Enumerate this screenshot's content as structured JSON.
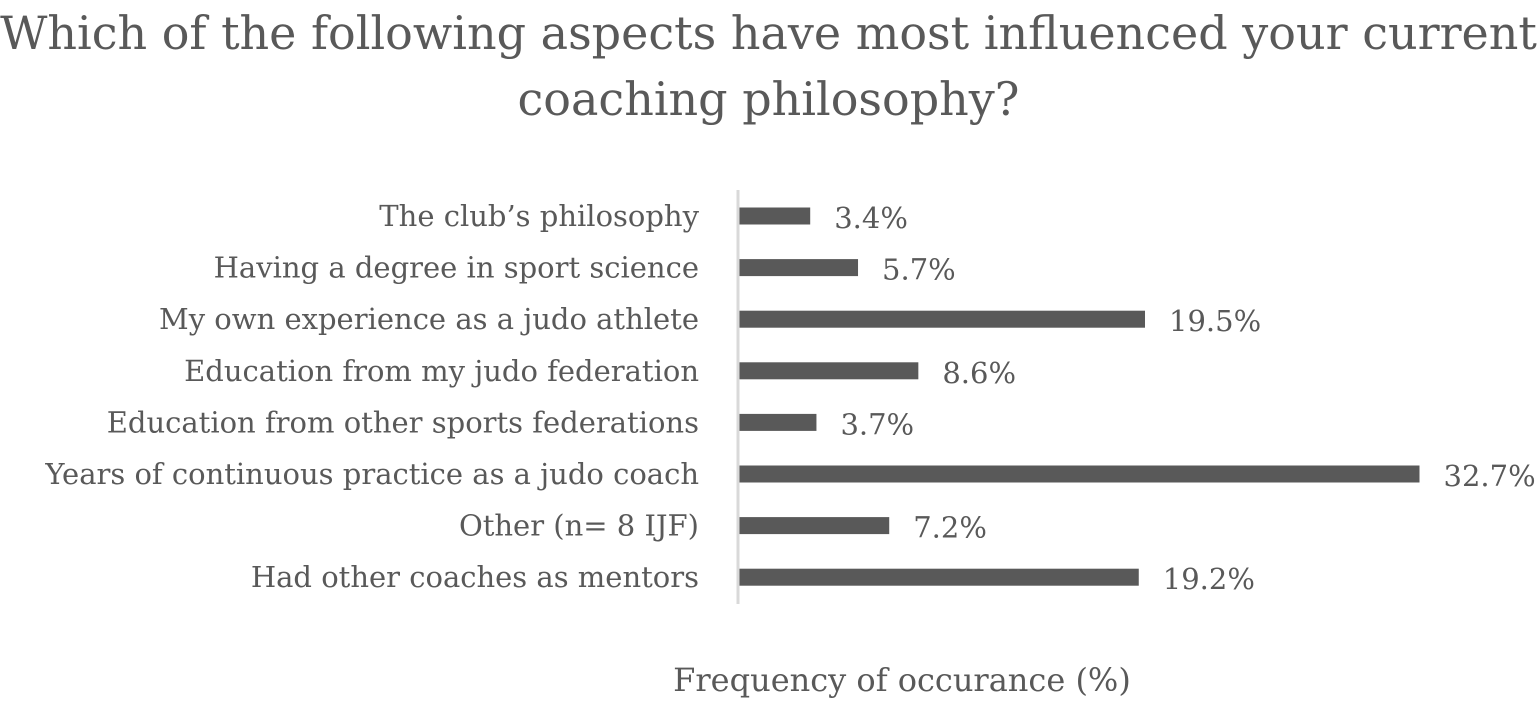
{
  "chart_data": {
    "type": "bar",
    "orientation": "horizontal",
    "title": "Which of the following aspects have most influenced your current coaching philosophy?",
    "xlabel": "Frequency of occurance (%)",
    "ylabel": "",
    "categories": [
      "The club’s philosophy",
      "Having a degree in sport science",
      "My own experience as a judo athlete",
      "Education from my judo federation",
      "Education from other sports federations",
      "Years of continuous practice as a judo coach",
      "Other (n= 8 IJF)",
      "Had other coaches as mentors"
    ],
    "values": [
      3.4,
      5.7,
      19.5,
      8.6,
      3.7,
      32.7,
      7.2,
      19.2
    ],
    "value_labels": [
      "3.4%",
      "5.7%",
      "19.5%",
      "8.6%",
      "3.7%",
      "32.7%",
      "7.2%",
      "19.2%"
    ],
    "xlim": [
      0,
      32.7
    ],
    "grid": false,
    "legend": "none",
    "bar_color": "#595959",
    "axis_color": "#d9d9d9"
  }
}
